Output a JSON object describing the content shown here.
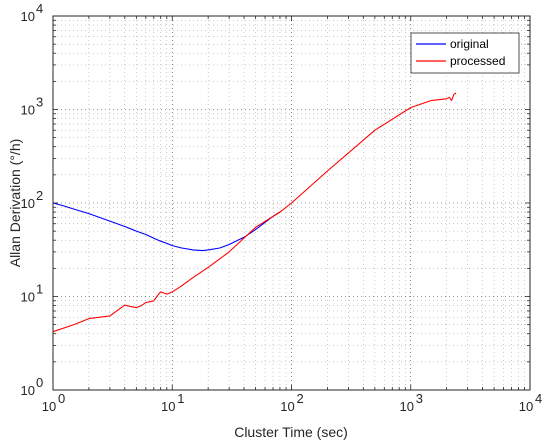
{
  "chart_data": {
    "type": "line",
    "title": "",
    "xlabel": "Cluster Time (sec)",
    "ylabel": "Allan Derivation (°/h)",
    "x_scale": "log",
    "y_scale": "log",
    "xlim": [
      1,
      10000
    ],
    "ylim": [
      1,
      10000
    ],
    "x_ticks": [
      {
        "value": 1,
        "base": "10",
        "exp": "0"
      },
      {
        "value": 10,
        "base": "10",
        "exp": "1"
      },
      {
        "value": 100,
        "base": "10",
        "exp": "2"
      },
      {
        "value": 1000,
        "base": "10",
        "exp": "3"
      },
      {
        "value": 10000,
        "base": "10",
        "exp": "4"
      }
    ],
    "y_ticks": [
      {
        "value": 1,
        "base": "10",
        "exp": "0"
      },
      {
        "value": 10,
        "base": "10",
        "exp": "1"
      },
      {
        "value": 100,
        "base": "10",
        "exp": "2"
      },
      {
        "value": 1000,
        "base": "10",
        "exp": "3"
      },
      {
        "value": 10000,
        "base": "10",
        "exp": "4"
      }
    ],
    "grid": "on (dotted, major and minor)",
    "legend_position": "top-right",
    "series": [
      {
        "name": "original",
        "color": "#0000ff",
        "x": [
          1,
          1.2,
          1.5,
          2,
          3,
          4,
          5,
          6,
          7,
          8,
          9,
          10,
          12,
          15,
          18,
          20,
          25,
          30,
          40,
          50,
          60,
          70,
          80
        ],
        "y": [
          100,
          94,
          86,
          77,
          64,
          56,
          50,
          46,
          42,
          39,
          37,
          35,
          33,
          31.5,
          31,
          31.5,
          33,
          36,
          43,
          52,
          62,
          72,
          80
        ]
      },
      {
        "name": "processed",
        "color": "#ff0000",
        "x": [
          1,
          1.5,
          2,
          3,
          4,
          4.5,
          5,
          5.5,
          6,
          7,
          7.5,
          8,
          9,
          10,
          12,
          15,
          20,
          30,
          50,
          80,
          100,
          200,
          500,
          1000,
          1500,
          2000,
          2100,
          2200,
          2300,
          2400
        ],
        "y": [
          4.2,
          5,
          5.8,
          6.2,
          8.1,
          7.8,
          7.6,
          8,
          8.6,
          9,
          10.2,
          11.2,
          10.6,
          11.2,
          13,
          16,
          20.5,
          30,
          55,
          80,
          100,
          220,
          600,
          1050,
          1250,
          1300,
          1350,
          1250,
          1450,
          1500
        ]
      }
    ]
  }
}
